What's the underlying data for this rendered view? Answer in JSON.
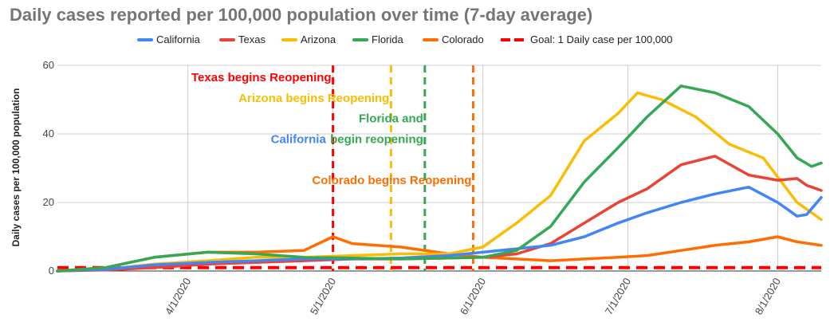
{
  "chart_data": {
    "type": "line",
    "title": "Daily cases reported per 100,000 population over time (7-day average)",
    "xlabel": "",
    "ylabel": "Daily cases per 100,000 population",
    "ylim": [
      0,
      60
    ],
    "yticks": [
      0,
      20,
      40,
      60
    ],
    "xlim": [
      "2020-03-05",
      "2020-08-10"
    ],
    "xticks": [
      "4/1/2020",
      "5/1/2020",
      "6/1/2020",
      "7/1/2020",
      "8/1/2020"
    ],
    "xtick_dates": [
      "2020-04-01",
      "2020-05-01",
      "2020-06-01",
      "2020-07-01",
      "2020-08-01"
    ],
    "grid": "vertical",
    "legend": "top",
    "series": [
      {
        "name": "California",
        "color": "#4285f4",
        "x": [
          "2020-03-05",
          "2020-03-15",
          "2020-03-25",
          "2020-04-05",
          "2020-04-15",
          "2020-04-25",
          "2020-05-05",
          "2020-05-15",
          "2020-05-25",
          "2020-06-01",
          "2020-06-08",
          "2020-06-15",
          "2020-06-22",
          "2020-06-29",
          "2020-07-05",
          "2020-07-12",
          "2020-07-19",
          "2020-07-26",
          "2020-08-01",
          "2020-08-05",
          "2020-08-07",
          "2020-08-10"
        ],
        "values": [
          0,
          0.5,
          1.8,
          2.5,
          3,
          3.5,
          3.5,
          3.8,
          4.5,
          5.5,
          6.5,
          7.5,
          10,
          14,
          17,
          20,
          22.5,
          24.5,
          20,
          16,
          16.5,
          21.5
        ]
      },
      {
        "name": "Texas",
        "color": "#ea4335",
        "x": [
          "2020-03-05",
          "2020-03-15",
          "2020-03-25",
          "2020-04-05",
          "2020-04-15",
          "2020-04-25",
          "2020-05-05",
          "2020-05-15",
          "2020-05-25",
          "2020-06-01",
          "2020-06-08",
          "2020-06-15",
          "2020-06-22",
          "2020-06-29",
          "2020-07-05",
          "2020-07-12",
          "2020-07-19",
          "2020-07-26",
          "2020-08-01",
          "2020-08-05",
          "2020-08-07",
          "2020-08-10"
        ],
        "values": [
          0,
          0.3,
          1,
          2,
          2.5,
          3,
          3.5,
          3.5,
          3.8,
          4,
          5,
          8,
          14,
          20,
          24,
          31,
          33.5,
          28,
          26.5,
          27,
          25,
          23.5
        ]
      },
      {
        "name": "Arizona",
        "color": "#fbbc04",
        "x": [
          "2020-03-05",
          "2020-03-15",
          "2020-03-25",
          "2020-04-05",
          "2020-04-15",
          "2020-04-25",
          "2020-05-05",
          "2020-05-15",
          "2020-05-25",
          "2020-06-01",
          "2020-06-08",
          "2020-06-15",
          "2020-06-22",
          "2020-06-29",
          "2020-07-03",
          "2020-07-08",
          "2020-07-15",
          "2020-07-22",
          "2020-07-29",
          "2020-08-05",
          "2020-08-10"
        ],
        "values": [
          0,
          0.5,
          2,
          3,
          4,
          4,
          4.5,
          5,
          5,
          7,
          14,
          22,
          38,
          46,
          52,
          50,
          45,
          37,
          33,
          20,
          15
        ]
      },
      {
        "name": "Florida",
        "color": "#34a853",
        "x": [
          "2020-03-05",
          "2020-03-15",
          "2020-03-25",
          "2020-04-05",
          "2020-04-15",
          "2020-04-25",
          "2020-05-05",
          "2020-05-15",
          "2020-05-25",
          "2020-06-01",
          "2020-06-08",
          "2020-06-15",
          "2020-06-22",
          "2020-06-29",
          "2020-07-05",
          "2020-07-12",
          "2020-07-19",
          "2020-07-26",
          "2020-08-01",
          "2020-08-05",
          "2020-08-08",
          "2020-08-10"
        ],
        "values": [
          0,
          1,
          4,
          5.5,
          5,
          4,
          3.8,
          3.5,
          3.8,
          4,
          6,
          13,
          26,
          36,
          45,
          54,
          52,
          48,
          40,
          33,
          30.5,
          31.5
        ]
      },
      {
        "name": "Colorado",
        "color": "#ff6d01",
        "x": [
          "2020-03-05",
          "2020-03-15",
          "2020-03-25",
          "2020-04-05",
          "2020-04-15",
          "2020-04-25",
          "2020-05-01",
          "2020-05-05",
          "2020-05-15",
          "2020-05-25",
          "2020-06-01",
          "2020-06-08",
          "2020-06-15",
          "2020-06-22",
          "2020-06-29",
          "2020-07-05",
          "2020-07-12",
          "2020-07-19",
          "2020-07-26",
          "2020-08-01",
          "2020-08-05",
          "2020-08-10"
        ],
        "values": [
          0,
          1,
          4,
          5.5,
          5.5,
          6,
          10,
          8,
          7,
          5,
          4,
          3.5,
          3,
          3.5,
          4,
          4.5,
          6,
          7.5,
          8.5,
          10,
          8.5,
          7.5
        ]
      },
      {
        "name": "Goal: 1 Daily case per 100,000",
        "color": "#ff0000",
        "dashed": true,
        "x": [
          "2020-03-05",
          "2020-08-10"
        ],
        "values": [
          1,
          1
        ]
      }
    ],
    "annotations": [
      {
        "date": "2020-05-01",
        "color": "#ff0000",
        "lines": [
          {
            "text": "Texas begins Reopening",
            "y": 56.5,
            "align": "end"
          }
        ]
      },
      {
        "date": "2020-05-13",
        "color": "#fbbc04",
        "lines": [
          {
            "text": "Arizona begins Reopening",
            "y": 50.5,
            "align": "end"
          }
        ]
      },
      {
        "date": "2020-05-20",
        "color": "#34a853",
        "lines": [
          {
            "text": "Florida and",
            "y": 44.5,
            "align": "end"
          },
          {
            "text": "begin reopening",
            "y": 38.5,
            "align": "end"
          }
        ]
      },
      {
        "date": "2020-05-30",
        "color": "#ff6d01",
        "lines": [
          {
            "text": "Colorado begins Reopening",
            "y": 26.5,
            "align": "end"
          }
        ]
      },
      {
        "date": "2020-05-20",
        "color": "#4285f4",
        "lines": [
          {
            "text": "California",
            "y": 38.5,
            "align": "california"
          }
        ]
      }
    ]
  }
}
